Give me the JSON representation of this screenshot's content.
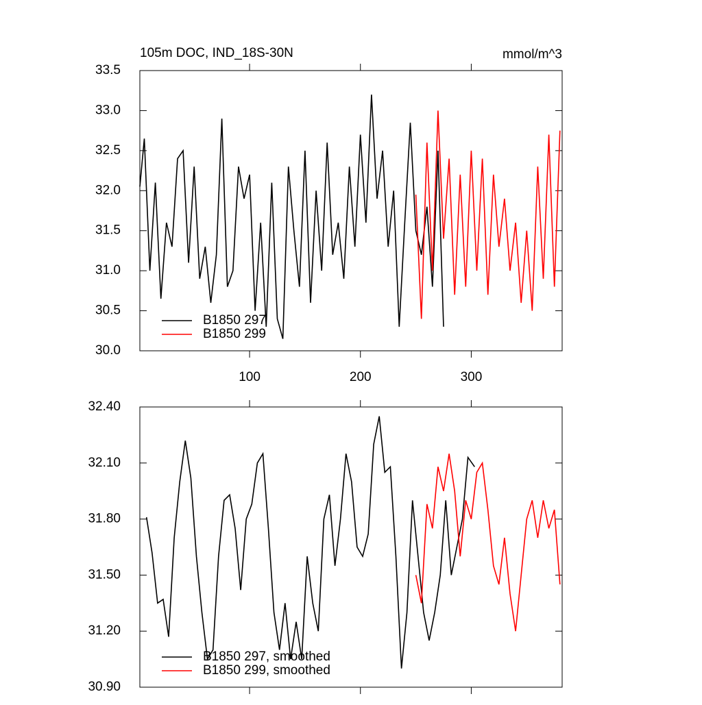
{
  "chart_data": [
    {
      "type": "line",
      "title": "105m DOC, IND_18S-30N",
      "subtitle": "mmol/m^3",
      "xlim": [
        1,
        382
      ],
      "xticks": [
        100,
        200,
        300
      ],
      "ylim": [
        30.0,
        33.5
      ],
      "yticks": [
        {
          "value": 30.0,
          "label": "30.0"
        },
        {
          "value": 30.5,
          "label": "30.5"
        },
        {
          "value": 31.0,
          "label": "31.0"
        },
        {
          "value": 31.5,
          "label": "31.5"
        },
        {
          "value": 32.0,
          "label": "32.0"
        },
        {
          "value": 32.5,
          "label": "32.5"
        },
        {
          "value": 33.0,
          "label": "33.0"
        },
        {
          "value": 33.5,
          "label": "33.5"
        }
      ],
      "legend": "lower left",
      "series": [
        {
          "name": "B1850 297",
          "color": "#000000",
          "x": [
            1,
            5,
            10,
            15,
            20,
            25,
            30,
            35,
            40,
            45,
            50,
            55,
            60,
            65,
            70,
            75,
            80,
            85,
            90,
            95,
            100,
            105,
            110,
            115,
            120,
            125,
            130,
            135,
            140,
            145,
            150,
            155,
            160,
            165,
            170,
            175,
            180,
            185,
            190,
            195,
            200,
            205,
            210,
            215,
            220,
            225,
            230,
            235,
            240,
            245,
            250,
            255,
            260,
            265,
            270,
            275
          ],
          "values": [
            32.05,
            32.65,
            31.0,
            32.1,
            30.65,
            31.6,
            31.3,
            32.4,
            32.5,
            31.1,
            32.3,
            30.9,
            31.3,
            30.6,
            31.2,
            32.9,
            30.8,
            31.0,
            32.3,
            31.9,
            32.2,
            30.5,
            31.6,
            30.3,
            32.1,
            30.4,
            30.15,
            32.3,
            31.5,
            30.8,
            32.5,
            30.6,
            32.0,
            31.0,
            32.6,
            31.2,
            31.6,
            30.9,
            32.3,
            31.3,
            32.7,
            31.6,
            33.2,
            31.9,
            32.5,
            31.3,
            32.0,
            30.3,
            31.6,
            32.85,
            31.5,
            31.2,
            31.8,
            30.8,
            32.5,
            30.3
          ]
        },
        {
          "name": "B1850 299",
          "color": "#ff0000",
          "x": [
            250,
            255,
            260,
            265,
            270,
            275,
            280,
            285,
            290,
            295,
            300,
            305,
            310,
            315,
            320,
            325,
            330,
            335,
            340,
            345,
            350,
            355,
            360,
            365,
            370,
            375,
            380
          ],
          "values": [
            31.95,
            30.4,
            32.6,
            31.0,
            33.0,
            31.4,
            32.4,
            30.7,
            32.2,
            30.8,
            32.5,
            31.0,
            32.4,
            30.7,
            32.2,
            31.3,
            31.9,
            31.0,
            31.6,
            30.6,
            31.5,
            30.5,
            32.3,
            30.9,
            32.7,
            30.8,
            32.75
          ]
        }
      ]
    },
    {
      "type": "line",
      "xlim": [
        1,
        382
      ],
      "xticks": [
        100,
        200,
        300
      ],
      "ylim": [
        30.9,
        32.4
      ],
      "yticks": [
        {
          "value": 30.9,
          "label": "30.90"
        },
        {
          "value": 31.2,
          "label": "31.20"
        },
        {
          "value": 31.5,
          "label": "31.50"
        },
        {
          "value": 31.8,
          "label": "31.80"
        },
        {
          "value": 32.1,
          "label": "32.10"
        },
        {
          "value": 32.4,
          "label": "32.40"
        }
      ],
      "legend": "lower left",
      "series": [
        {
          "name": "B1850 297, smoothed",
          "color": "#000000",
          "x": [
            7,
            12,
            17,
            22,
            27,
            32,
            37,
            42,
            47,
            52,
            57,
            62,
            67,
            72,
            77,
            82,
            87,
            92,
            97,
            102,
            107,
            112,
            117,
            122,
            127,
            132,
            137,
            142,
            147,
            152,
            157,
            162,
            167,
            172,
            177,
            182,
            187,
            192,
            197,
            202,
            207,
            212,
            217,
            222,
            227,
            232,
            237,
            242,
            247,
            252,
            257,
            262,
            267,
            272,
            277,
            282,
            287,
            292,
            297,
            303
          ],
          "values": [
            31.81,
            31.62,
            31.35,
            31.37,
            31.17,
            31.7,
            32.0,
            32.22,
            32.02,
            31.6,
            31.3,
            31.05,
            31.1,
            31.6,
            31.9,
            31.93,
            31.75,
            31.42,
            31.8,
            31.88,
            32.1,
            32.15,
            31.75,
            31.3,
            31.1,
            31.35,
            31.05,
            31.25,
            31.05,
            31.6,
            31.35,
            31.2,
            31.8,
            31.93,
            31.55,
            31.8,
            32.15,
            32.0,
            31.65,
            31.6,
            31.72,
            32.2,
            32.35,
            32.05,
            32.08,
            31.6,
            31.0,
            31.3,
            31.9,
            31.6,
            31.3,
            31.15,
            31.3,
            31.5,
            31.9,
            31.5,
            31.65,
            31.8,
            32.13,
            32.08
          ]
        },
        {
          "name": "B1850 299, smoothed",
          "color": "#ff0000",
          "x": [
            250,
            255,
            260,
            265,
            270,
            275,
            280,
            285,
            290,
            295,
            300,
            305,
            310,
            315,
            320,
            325,
            330,
            335,
            340,
            345,
            350,
            355,
            360,
            365,
            370,
            375,
            380
          ],
          "values": [
            31.5,
            31.35,
            31.88,
            31.75,
            32.08,
            31.95,
            32.15,
            31.95,
            31.6,
            31.9,
            31.8,
            32.05,
            32.1,
            31.85,
            31.55,
            31.45,
            31.7,
            31.4,
            31.2,
            31.5,
            31.8,
            31.9,
            31.7,
            31.9,
            31.75,
            31.85,
            31.45
          ]
        }
      ]
    }
  ]
}
